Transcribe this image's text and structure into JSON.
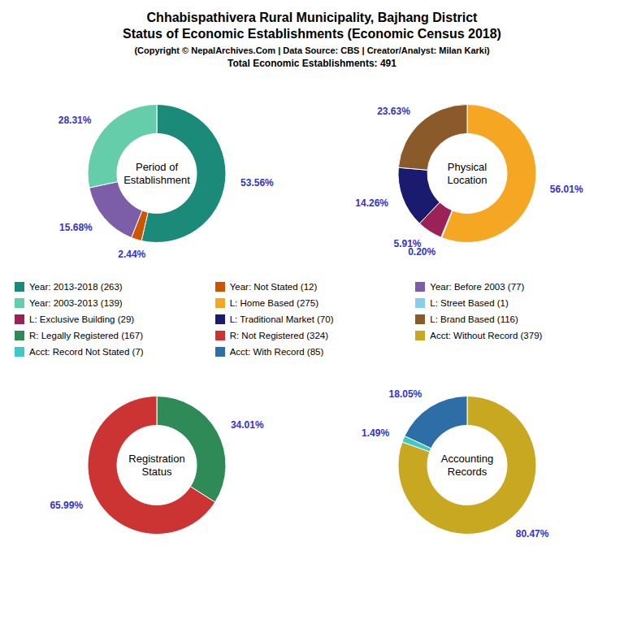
{
  "title": "Chhabispathivera Rural Municipality, Bajhang District\nStatus of Economic Establishments (Economic Census 2018)",
  "subtitle": "(Copyright © NepalArchives.Com | Data Source: CBS | Creator/Analyst: Milan Karki)",
  "annotations": [
    "Total Economic Establishments: 491"
  ],
  "chart_data": [
    {
      "type": "pie",
      "title": "Period of\nEstablishment",
      "categories": [
        "Year: 2013-2018 (263)",
        "Year: Not Stated (12)",
        "Year: Before 2003 (77)",
        "Year: 2003-2013 (139)"
      ],
      "values": [
        53.56,
        2.44,
        15.68,
        28.31
      ],
      "value_labels": [
        "53.56%",
        "2.44%",
        "15.68%",
        "28.31%"
      ],
      "colors": [
        "#1B8A78",
        "#CC5500",
        "#7B5EA7",
        "#66CDAA"
      ],
      "data_labels": true
    },
    {
      "type": "pie",
      "title": "Physical\nLocation",
      "categories": [
        "L: Home Based (275)",
        "L: Street Based (1)",
        "L: Exclusive Building (29)",
        "L: Traditional Market (70)",
        "L: Brand Based (116)"
      ],
      "values": [
        56.01,
        0.2,
        5.91,
        14.26,
        23.63
      ],
      "value_labels": [
        "56.01%",
        "0.20%",
        "5.91%",
        "14.26%",
        "23.63%"
      ],
      "colors": [
        "#F5A623",
        "#87CEEB",
        "#9B2257",
        "#1A1A6E",
        "#8B5A2B"
      ],
      "data_labels": true
    },
    {
      "type": "pie",
      "title": "Registration\nStatus",
      "categories": [
        "R: Legally Registered (167)",
        "R: Not Registered (324)"
      ],
      "values": [
        34.01,
        65.99
      ],
      "value_labels": [
        "34.01%",
        "65.99%"
      ],
      "colors": [
        "#2E8B57",
        "#CC3333"
      ],
      "data_labels": true
    },
    {
      "type": "pie",
      "title": "Accounting\nRecords",
      "categories": [
        "Acct: Without Record (379)",
        "Acct: Record Not Stated (7)",
        "Acct: With Record (85)"
      ],
      "values": [
        80.47,
        1.49,
        18.05
      ],
      "value_labels": [
        "80.47%",
        "1.49%",
        "18.05%"
      ],
      "colors": [
        "#C8A820",
        "#40C8C8",
        "#2E6EA6"
      ],
      "data_labels": true
    }
  ]
}
